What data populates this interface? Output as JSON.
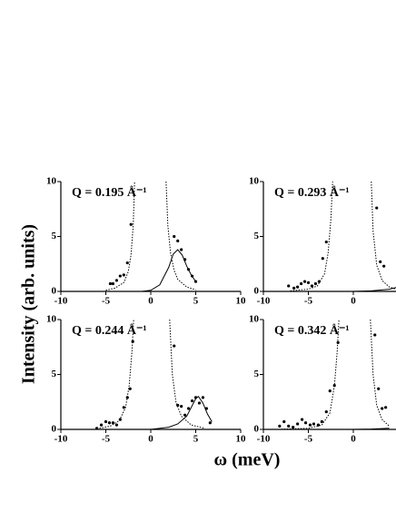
{
  "xlabel": "ω (meV)",
  "ylabel": "Intensity (arb. units)",
  "chart_data": [
    {
      "type": "scatter",
      "title": "Q = 0.195 Å⁻¹",
      "xlim": [
        -10,
        10
      ],
      "ylim": [
        0,
        10
      ],
      "xticks": [
        -10,
        -5,
        0,
        5,
        10
      ],
      "yticks": [
        0,
        5,
        10
      ],
      "series": [
        {
          "style": "points",
          "color": "#000000",
          "x": [
            -4.5,
            -4.2,
            -3.8,
            -3.4,
            -3.0,
            -2.6,
            -2.2,
            2.6,
            3.0,
            3.4,
            3.8,
            4.2,
            4.6,
            5.0
          ],
          "values": [
            0.7,
            0.7,
            1.0,
            1.4,
            1.5,
            2.6,
            6.1,
            5.0,
            4.6,
            3.8,
            2.9,
            2.0,
            1.4,
            0.9
          ]
        },
        {
          "style": "dotted",
          "color": "#000000",
          "x": [
            -5,
            -4,
            -3,
            -2.5,
            -2.2,
            -1.95,
            -1.8,
            null,
            1.7,
            1.9,
            2.2,
            2.6,
            3,
            4,
            5
          ],
          "values": [
            0.1,
            0.3,
            0.8,
            1.8,
            3.3,
            6,
            10,
            null,
            10,
            6,
            3.5,
            1.9,
            1.1,
            0.4,
            0.15
          ]
        },
        {
          "style": "solid",
          "color": "#000000",
          "x": [
            -1,
            0,
            1,
            2,
            2.5,
            3,
            3.5,
            4,
            4.5,
            5
          ],
          "values": [
            0,
            0.1,
            0.6,
            2.2,
            3.4,
            3.8,
            3.3,
            2.3,
            1.5,
            0.9
          ]
        }
      ]
    },
    {
      "type": "scatter",
      "title": "Q = 0.293 Å⁻¹",
      "xlim": [
        -10,
        10
      ],
      "ylim": [
        0,
        10
      ],
      "xticks": [
        -10,
        -5,
        0
      ],
      "yticks": [
        0,
        5,
        10
      ],
      "series": [
        {
          "style": "points",
          "color": "#000000",
          "x": [
            -7.2,
            -6.6,
            -6.2,
            -5.8,
            -5.4,
            -5.0,
            -4.6,
            -4.2,
            -3.8,
            -3.4,
            -3.0,
            2.6,
            3.0,
            3.4
          ],
          "values": [
            0.5,
            0.3,
            0.4,
            0.7,
            0.9,
            0.8,
            0.5,
            0.7,
            0.9,
            3.0,
            4.5,
            7.6,
            2.7,
            2.3
          ]
        },
        {
          "style": "dotted",
          "color": "#000000",
          "x": [
            -7,
            -5,
            -4,
            -3.2,
            -2.8,
            -2.5,
            -2.3,
            null,
            2.0,
            2.2,
            2.6,
            3.2,
            4,
            5
          ],
          "values": [
            0.05,
            0.2,
            0.5,
            1.6,
            3.5,
            6.5,
            10,
            null,
            10,
            5.5,
            2.4,
            1.0,
            0.4,
            0.15
          ]
        },
        {
          "style": "solid",
          "color": "#000000",
          "x": [
            0,
            2,
            4,
            5
          ],
          "values": [
            0,
            0.05,
            0.2,
            0.4
          ]
        }
      ]
    },
    {
      "type": "scatter",
      "title": "Q = 0.244 Å⁻¹",
      "xlim": [
        -10,
        10
      ],
      "ylim": [
        0,
        10
      ],
      "xticks": [
        -10,
        -5,
        0,
        5,
        10
      ],
      "yticks": [
        0,
        5,
        10
      ],
      "series": [
        {
          "style": "points",
          "color": "#000000",
          "x": [
            -6.0,
            -5.5,
            -5.0,
            -4.6,
            -4.2,
            -3.8,
            -3.4,
            -3.0,
            -2.6,
            -2.3,
            -2.0,
            2.6,
            3.0,
            3.4,
            3.8,
            4.2,
            4.6,
            5.0,
            5.4,
            5.8,
            6.2,
            6.6
          ],
          "values": [
            0.1,
            0.4,
            0.7,
            0.6,
            0.6,
            0.4,
            0.9,
            2.0,
            2.9,
            3.7,
            8.0,
            7.6,
            2.2,
            2.1,
            1.3,
            1.9,
            2.6,
            2.9,
            2.4,
            2.9,
            1.9,
            0.6
          ]
        },
        {
          "style": "dotted",
          "color": "#000000",
          "x": [
            -6,
            -4.5,
            -3.5,
            -2.8,
            -2.4,
            -2.1,
            -1.9,
            null,
            2.1,
            2.4,
            2.8,
            3.4,
            4.5,
            6
          ],
          "values": [
            0.05,
            0.3,
            0.8,
            2,
            4,
            7,
            10,
            null,
            10,
            5,
            2.5,
            1.2,
            0.4,
            0.1
          ]
        },
        {
          "style": "solid",
          "color": "#000000",
          "x": [
            0,
            2,
            3,
            4,
            4.5,
            5,
            5.3,
            5.8,
            6.3,
            6.8
          ],
          "values": [
            0,
            0.2,
            0.5,
            1.2,
            2.0,
            2.8,
            3.0,
            2.4,
            1.4,
            0.7
          ]
        }
      ]
    },
    {
      "type": "scatter",
      "title": "Q = 0.342 Å⁻¹",
      "xlim": [
        -10,
        10
      ],
      "ylim": [
        0,
        10
      ],
      "xticks": [
        -10,
        -5,
        0
      ],
      "yticks": [
        0,
        5,
        10
      ],
      "series": [
        {
          "style": "points",
          "color": "#000000",
          "x": [
            -8.2,
            -7.7,
            -7.2,
            -6.7,
            -6.2,
            -5.7,
            -5.3,
            -4.8,
            -4.4,
            -3.9,
            -3.5,
            -3.0,
            -2.6,
            -2.1,
            -1.7,
            2.4,
            2.8,
            3.2,
            3.6
          ],
          "values": [
            0.3,
            0.7,
            0.3,
            0.2,
            0.5,
            0.9,
            0.6,
            0.4,
            0.5,
            0.4,
            0.7,
            1.6,
            3.5,
            4.0,
            7.9,
            8.6,
            3.7,
            1.9,
            2.0
          ]
        },
        {
          "style": "dotted",
          "color": "#000000",
          "x": [
            -8,
            -5,
            -3.5,
            -2.6,
            -2.1,
            -1.8,
            -1.6,
            null,
            1.9,
            2.2,
            2.6,
            3.2,
            4
          ],
          "values": [
            0.02,
            0.1,
            0.4,
            1.5,
            4,
            7,
            10,
            null,
            10,
            5,
            2.2,
            0.9,
            0.3
          ]
        },
        {
          "style": "solid",
          "color": "#000000",
          "x": [
            0,
            2,
            4
          ],
          "values": [
            0,
            0.03,
            0.1
          ]
        }
      ]
    }
  ]
}
